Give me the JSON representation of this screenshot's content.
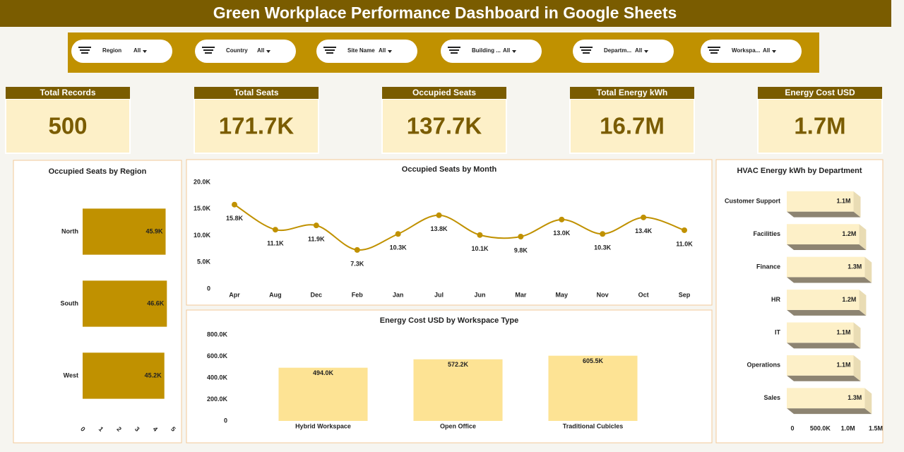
{
  "header": {
    "title": "Green Workplace Performance Dashboard in Google Sheets"
  },
  "filters": [
    {
      "label": "Region",
      "value": "All"
    },
    {
      "label": "Country",
      "value": "All"
    },
    {
      "label": "Site Name",
      "value": "All"
    },
    {
      "label": "Building ...",
      "value": "All"
    },
    {
      "label": "Departm...",
      "value": "All"
    },
    {
      "label": "Workspa...",
      "value": "All"
    }
  ],
  "kpis": [
    {
      "label": "Total Records",
      "value": "500"
    },
    {
      "label": "Total Seats",
      "value": "171.7K"
    },
    {
      "label": "Occupied Seats",
      "value": "137.7K"
    },
    {
      "label": "Total Energy kWh",
      "value": "16.7M"
    },
    {
      "label": "Energy Cost USD",
      "value": "1.7M"
    }
  ],
  "chart_data": [
    {
      "type": "bar",
      "orientation": "horizontal",
      "title": "Occupied Seats by Region",
      "categories": [
        "North",
        "South",
        "West"
      ],
      "values": [
        45900,
        46600,
        45200
      ],
      "value_labels": [
        "45.9K",
        "46.6K",
        "45.2K"
      ],
      "color": "#c09100",
      "xlim": [
        0,
        50000
      ],
      "xticks": [
        0,
        {
          "value": 10000,
          "label": "1"
        },
        {
          "value": 20000,
          "label": "2"
        },
        {
          "value": 30000,
          "label": "3"
        },
        {
          "value": 40000,
          "label": "4"
        },
        {
          "value": 50000,
          "label": "5"
        }
      ]
    },
    {
      "type": "line",
      "smooth": true,
      "title": "Occupied Seats by Month",
      "categories": [
        "Apr",
        "Aug",
        "Dec",
        "Feb",
        "Jan",
        "Jul",
        "Jun",
        "Mar",
        "May",
        "Nov",
        "Oct",
        "Sep"
      ],
      "values": [
        15800,
        11100,
        11900,
        7300,
        10300,
        13800,
        10100,
        9800,
        13000,
        10300,
        13400,
        11000
      ],
      "value_labels": [
        "15.8K",
        "11.1K",
        "11.9K",
        "7.3K",
        "10.3K",
        "13.8K",
        "10.1K",
        "9.8K",
        "13.0K",
        "10.3K",
        "13.4K",
        "11.0K"
      ],
      "color": "#c09100",
      "ylim": [
        0,
        20000
      ],
      "yticks": [
        0,
        {
          "value": 5000,
          "label": "5.0K"
        },
        {
          "value": 10000,
          "label": "10.0K"
        },
        {
          "value": 15000,
          "label": "15.0K"
        },
        {
          "value": 20000,
          "label": "20.0K"
        }
      ]
    },
    {
      "type": "bar",
      "orientation": "vertical",
      "title": "Energy Cost USD by Workspace Type",
      "categories": [
        "Hybrid Workspace",
        "Open Office",
        "Traditional Cubicles"
      ],
      "values": [
        494000,
        572200,
        605500
      ],
      "value_labels": [
        "494.0K",
        "572.2K",
        "605.5K"
      ],
      "color": "#fde394",
      "ylim": [
        0,
        800000
      ],
      "yticks": [
        0,
        {
          "value": 200000,
          "label": "200.0K"
        },
        {
          "value": 400000,
          "label": "400.0K"
        },
        {
          "value": 600000,
          "label": "600.0K"
        },
        {
          "value": 800000,
          "label": "800.0K"
        }
      ]
    },
    {
      "type": "bar",
      "orientation": "horizontal",
      "effect": "3d",
      "title": "HVAC Energy kWh by Department",
      "categories": [
        "Customer Support",
        "Facilities",
        "Finance",
        "HR",
        "IT",
        "Operations",
        "Sales"
      ],
      "values": [
        1100000,
        1200000,
        1300000,
        1200000,
        1100000,
        1100000,
        1300000
      ],
      "value_labels": [
        "1.1M",
        "1.2M",
        "1.3M",
        "1.2M",
        "1.1M",
        "1.1M",
        "1.3M"
      ],
      "color": "#fdf0c8",
      "shadow_color": "#8d8472",
      "xlim": [
        0,
        1500000
      ],
      "xticks": [
        0,
        {
          "value": 500000,
          "label": "500.0K"
        },
        {
          "value": 1000000,
          "label": "1.0M"
        },
        {
          "value": 1500000,
          "label": "1.5M"
        }
      ]
    }
  ]
}
